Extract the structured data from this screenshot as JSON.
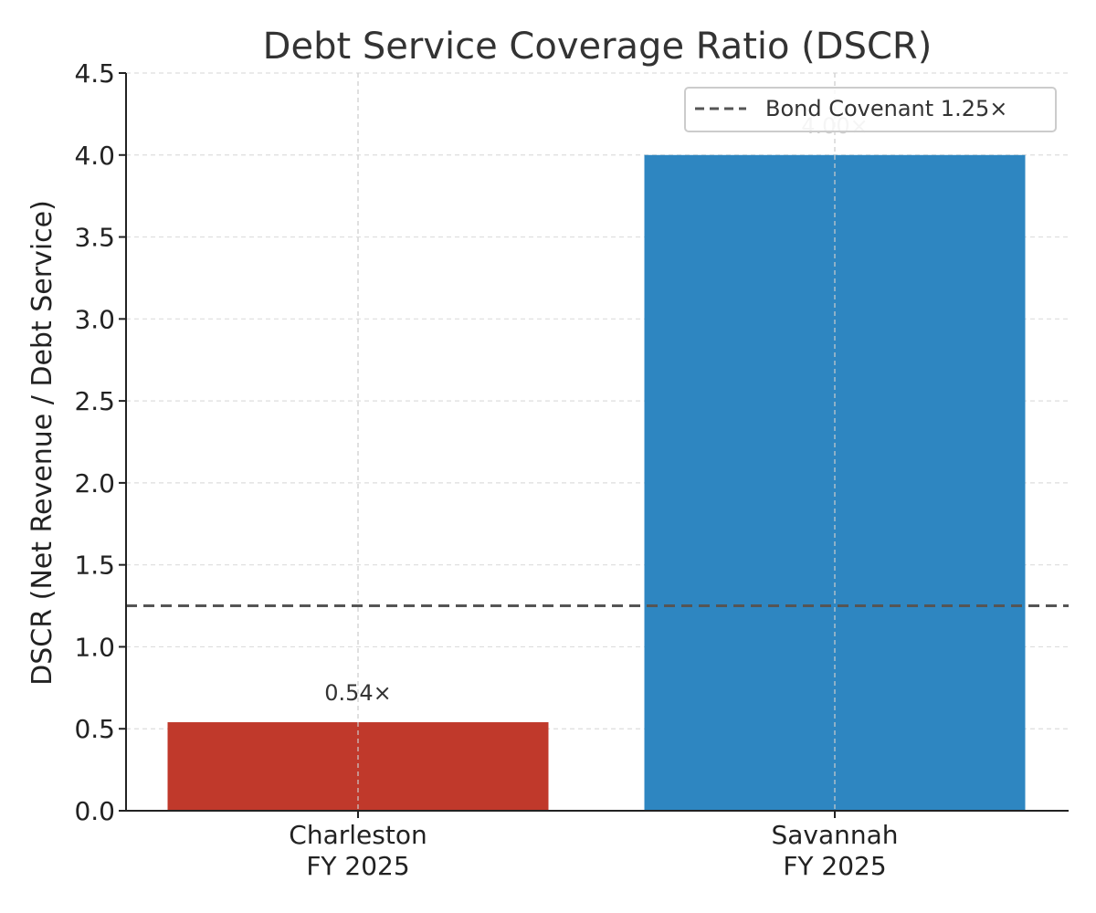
{
  "chart_data": {
    "type": "bar",
    "title": "Debt Service Coverage Ratio (DSCR)",
    "xlabel": "",
    "ylabel": "DSCR (Net Revenue / Debt Service)",
    "categories": [
      [
        "Charleston",
        "FY 2025"
      ],
      [
        "Savannah",
        "FY 2025"
      ]
    ],
    "values": [
      0.54,
      4.0
    ],
    "data_labels": [
      "0.54×",
      "4.00×"
    ],
    "bar_colors": [
      "#c0392b",
      "#2e86c1"
    ],
    "data_label_colors": [
      "#333333",
      "#cccccc"
    ],
    "ylim": [
      0,
      4.5
    ],
    "yticks": [
      0.0,
      0.5,
      1.0,
      1.5,
      2.0,
      2.5,
      3.0,
      3.5,
      4.0,
      4.5
    ],
    "ytick_labels": [
      "0.0",
      "0.5",
      "1.0",
      "1.5",
      "2.0",
      "2.5",
      "3.0",
      "3.5",
      "4.0",
      "4.5"
    ],
    "grid": true,
    "reference_line": {
      "value": 1.25,
      "label": "Bond Covenant 1.25×",
      "color": "#555555",
      "style": "dashed"
    },
    "legend": {
      "position": "top-right"
    }
  }
}
